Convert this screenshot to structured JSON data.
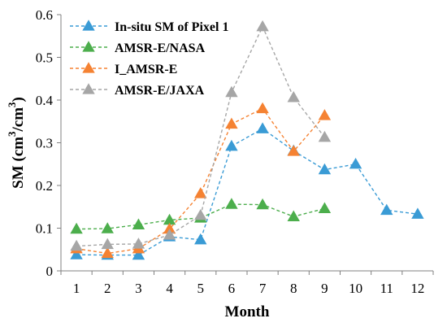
{
  "chart_data": {
    "type": "line",
    "xlabel": "Month",
    "ylabel": "SM (cm³/cm³)",
    "x_categories": [
      "1",
      "2",
      "3",
      "4",
      "5",
      "6",
      "7",
      "8",
      "9",
      "10",
      "11",
      "12"
    ],
    "y_ticks": [
      "0",
      "0.1",
      "0.2",
      "0.3",
      "0.4",
      "0.5",
      "0.6"
    ],
    "ylim": [
      0,
      0.6
    ],
    "grid": false,
    "legend_position": "top-left",
    "series": [
      {
        "name": "In-situ SM of Pixel 1",
        "color": "#3a9bd5",
        "marker": "triangle",
        "line_style": "dashed",
        "points": [
          [
            1,
            0.038
          ],
          [
            2,
            0.037
          ],
          [
            3,
            0.037
          ],
          [
            4,
            0.08
          ],
          [
            5,
            0.073
          ],
          [
            6,
            0.292
          ],
          [
            7,
            0.333
          ],
          [
            8,
            0.281
          ],
          [
            9,
            0.237
          ],
          [
            10,
            0.25
          ],
          [
            11,
            0.142
          ],
          [
            12,
            0.133
          ]
        ]
      },
      {
        "name": "AMSR-E/NASA",
        "color": "#4cae4c",
        "marker": "triangle",
        "line_style": "dashed",
        "points": [
          [
            1,
            0.098
          ],
          [
            2,
            0.099
          ],
          [
            3,
            0.108
          ],
          [
            4,
            0.119
          ],
          [
            5,
            0.124
          ],
          [
            6,
            0.156
          ],
          [
            7,
            0.155
          ],
          [
            8,
            0.127
          ],
          [
            9,
            0.146
          ]
        ]
      },
      {
        "name": "I_AMSR-E",
        "color": "#f58232",
        "marker": "triangle",
        "line_style": "dashed",
        "points": [
          [
            1,
            0.052
          ],
          [
            2,
            0.041
          ],
          [
            3,
            0.052
          ],
          [
            4,
            0.098
          ],
          [
            5,
            0.181
          ],
          [
            6,
            0.344
          ],
          [
            7,
            0.38
          ],
          [
            8,
            0.28
          ],
          [
            9,
            0.364
          ]
        ]
      },
      {
        "name": "AMSR-E/JAXA",
        "color": "#a6a6a6",
        "marker": "triangle",
        "line_style": "dashed",
        "points": [
          [
            1,
            0.058
          ],
          [
            2,
            0.062
          ],
          [
            3,
            0.063
          ],
          [
            4,
            0.084
          ],
          [
            5,
            0.13
          ],
          [
            6,
            0.418
          ],
          [
            7,
            0.572
          ],
          [
            8,
            0.406
          ],
          [
            9,
            0.313
          ]
        ]
      }
    ]
  }
}
